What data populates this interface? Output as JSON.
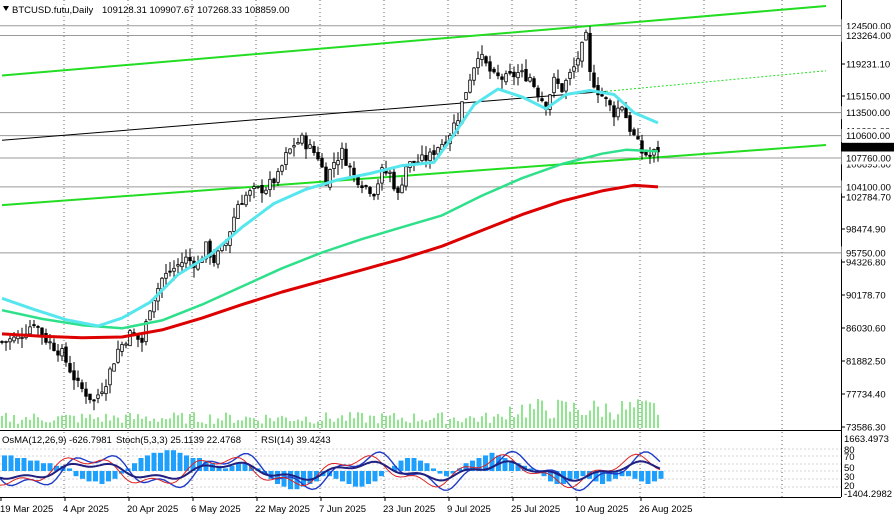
{
  "header": {
    "symbol": "BTCUSD.futu,Daily",
    "ohlc": "109128.31 109907.67 107268.33 108859.00"
  },
  "indicator_header": {
    "osma": "OsMA(12,26,9) -626.7981",
    "stoch": "Stoch(5,3,3) 25.1139 22.4768",
    "rsi": "RSI(14) 39.4243"
  },
  "colors": {
    "candle": "#000000",
    "ma_fast": "#55e6ee",
    "ma_mid": "#2ee08a",
    "ma_slow": "#dd0000",
    "channel": "#22dd22",
    "trend": "#000000",
    "histogram": "#1ea0ff",
    "level_line": "#9a9a9a",
    "grid": "#000000"
  },
  "chart_data": {
    "type": "candlestick",
    "y_ticks": [
      "123264.00",
      "119231.10",
      "115150.00",
      "110600.00",
      "106695.60",
      "102784.70",
      "98474.90",
      "94326.80",
      "90178.70",
      "86030.60",
      "81882.50",
      "77734.40",
      "73586.30"
    ],
    "level_tags": [
      "124500.00",
      "123264.00",
      "113500.00",
      "110600.00",
      "108859.00",
      "107760.00",
      "104100.00",
      "95750.00"
    ],
    "level_values": [
      124500,
      123264,
      113500,
      110600,
      107760,
      104100,
      95750
    ],
    "current_price": 108859,
    "x_labels": [
      "19 Mar 2025",
      "4 Apr 2025",
      "20 Apr 2025",
      "6 May 2025",
      "22 May 2025",
      "7 Jun 2025",
      "23 Jun 2025",
      "9 Jul 2025",
      "25 Jul 2025",
      "10 Aug 2025",
      "26 Aug 2025"
    ],
    "ylim": [
      73586.3,
      127000
    ],
    "close_path": [
      [
        0,
        84500
      ],
      [
        4,
        85000
      ],
      [
        8,
        87000
      ],
      [
        11,
        84800
      ],
      [
        15,
        83000
      ],
      [
        19,
        79000
      ],
      [
        23,
        77000
      ],
      [
        26,
        79500
      ],
      [
        29,
        83500
      ],
      [
        32,
        85500
      ],
      [
        35,
        84500
      ],
      [
        37,
        89000
      ],
      [
        40,
        92500
      ],
      [
        43,
        93800
      ],
      [
        46,
        95000
      ],
      [
        49,
        94300
      ],
      [
        51,
        96500
      ],
      [
        53,
        94800
      ],
      [
        56,
        97000
      ],
      [
        59,
        102000
      ],
      [
        61,
        103000
      ],
      [
        63,
        103600
      ],
      [
        66,
        104000
      ],
      [
        69,
        105400
      ],
      [
        71,
        108000
      ],
      [
        73,
        109500
      ],
      [
        75,
        110100
      ],
      [
        77,
        109000
      ],
      [
        79,
        108000
      ],
      [
        81,
        105000
      ],
      [
        83,
        107300
      ],
      [
        85,
        108500
      ],
      [
        88,
        105500
      ],
      [
        91,
        104200
      ],
      [
        93,
        103500
      ],
      [
        95,
        106000
      ],
      [
        97,
        105800
      ],
      [
        99,
        103000
      ],
      [
        101,
        106800
      ],
      [
        103,
        107200
      ],
      [
        105,
        107500
      ],
      [
        107,
        108000
      ],
      [
        109,
        109300
      ],
      [
        111,
        110000
      ],
      [
        114,
        113000
      ],
      [
        117,
        118000
      ],
      [
        119,
        121000
      ],
      [
        121,
        119500
      ],
      [
        123,
        118000
      ],
      [
        126,
        117800
      ],
      [
        129,
        118500
      ],
      [
        132,
        118000
      ],
      [
        134,
        116000
      ],
      [
        136,
        114500
      ],
      [
        138,
        117500
      ],
      [
        140,
        116500
      ],
      [
        143,
        119200
      ],
      [
        146,
        123000
      ],
      [
        147,
        118300
      ],
      [
        149,
        116300
      ],
      [
        151,
        115000
      ],
      [
        153,
        113500
      ],
      [
        155,
        114500
      ],
      [
        157,
        111500
      ],
      [
        160,
        108500
      ],
      [
        162,
        108000
      ],
      [
        164,
        108859
      ]
    ],
    "ma_fast": [
      [
        0,
        90000
      ],
      [
        8,
        88600
      ],
      [
        16,
        87300
      ],
      [
        24,
        86500
      ],
      [
        30,
        87500
      ],
      [
        37,
        89500
      ],
      [
        44,
        93000
      ],
      [
        52,
        95500
      ],
      [
        60,
        99000
      ],
      [
        68,
        102000
      ],
      [
        76,
        103800
      ],
      [
        84,
        105000
      ],
      [
        92,
        105800
      ],
      [
        100,
        106800
      ],
      [
        108,
        107200
      ],
      [
        112,
        110000
      ],
      [
        118,
        114500
      ],
      [
        124,
        116500
      ],
      [
        130,
        115500
      ],
      [
        136,
        114000
      ],
      [
        141,
        115800
      ],
      [
        147,
        116300
      ],
      [
        153,
        115800
      ],
      [
        158,
        113500
      ],
      [
        164,
        112200
      ]
    ],
    "ma_mid": [
      [
        0,
        88500
      ],
      [
        10,
        87400
      ],
      [
        20,
        86600
      ],
      [
        30,
        86200
      ],
      [
        40,
        87200
      ],
      [
        50,
        89200
      ],
      [
        60,
        91500
      ],
      [
        70,
        93800
      ],
      [
        80,
        95800
      ],
      [
        90,
        97500
      ],
      [
        100,
        99000
      ],
      [
        110,
        100500
      ],
      [
        120,
        103000
      ],
      [
        130,
        105200
      ],
      [
        140,
        107000
      ],
      [
        150,
        108300
      ],
      [
        156,
        108800
      ],
      [
        164,
        108600
      ]
    ],
    "ma_slow": [
      [
        0,
        85500
      ],
      [
        10,
        85200
      ],
      [
        20,
        85000
      ],
      [
        30,
        85100
      ],
      [
        40,
        86000
      ],
      [
        50,
        87500
      ],
      [
        60,
        89200
      ],
      [
        70,
        90800
      ],
      [
        80,
        92200
      ],
      [
        90,
        93600
      ],
      [
        100,
        95000
      ],
      [
        110,
        96600
      ],
      [
        120,
        98600
      ],
      [
        130,
        100600
      ],
      [
        140,
        102300
      ],
      [
        150,
        103600
      ],
      [
        158,
        104300
      ],
      [
        164,
        104100
      ]
    ],
    "channel_upper": [
      [
        0,
        118200
      ],
      [
        206,
        127000
      ]
    ],
    "channel_lower": [
      [
        0,
        101800
      ],
      [
        206,
        109400
      ]
    ],
    "channel_mid": [
      [
        0,
        110000
      ],
      [
        151,
        116200
      ]
    ],
    "channel_mid_dotted": [
      [
        151,
        116200
      ],
      [
        206,
        118800
      ]
    ],
    "osma_hist": [
      0.6,
      0.6,
      0.5,
      0.5,
      0.4,
      0.4,
      0.3,
      0.3,
      0.2,
      0.2,
      0.1,
      -0.2,
      -0.3,
      -0.4,
      -0.4,
      -0.5,
      -0.4,
      -0.3,
      -0.1,
      0.1,
      0.3,
      0.5,
      0.6,
      0.7,
      0.7,
      0.8,
      0.8,
      0.7,
      0.6,
      0.5,
      0.5,
      0.4,
      0.3,
      0.2,
      0.1,
      0.2,
      0.3,
      0.3,
      0.2,
      0.1,
      -0.1,
      -0.3,
      -0.5,
      -0.6,
      -0.7,
      -0.7,
      -0.6,
      -0.5,
      -0.4,
      -0.2,
      -0.2,
      -0.3,
      -0.4,
      -0.5,
      -0.6,
      -0.6,
      -0.5,
      -0.4,
      -0.2,
      0.0,
      0.2,
      0.4,
      0.5,
      0.5,
      0.4,
      0.3,
      0.1,
      -0.1,
      -0.2,
      -0.1,
      0.1,
      0.3,
      0.4,
      0.5,
      0.6,
      0.7,
      0.6,
      0.5,
      0.4,
      0.3,
      0.2,
      0.1,
      -0.1,
      -0.2,
      -0.4,
      -0.5,
      -0.5,
      -0.4,
      -0.3,
      -0.2,
      -0.3,
      -0.4,
      -0.5,
      -0.4,
      -0.3,
      -0.2,
      -0.2,
      -0.3,
      -0.4,
      -0.5,
      -0.4,
      -0.3
    ],
    "ind_scale": [
      "1663.4973",
      "80",
      "70",
      "50",
      "30",
      "20",
      "-1404.2982"
    ]
  }
}
